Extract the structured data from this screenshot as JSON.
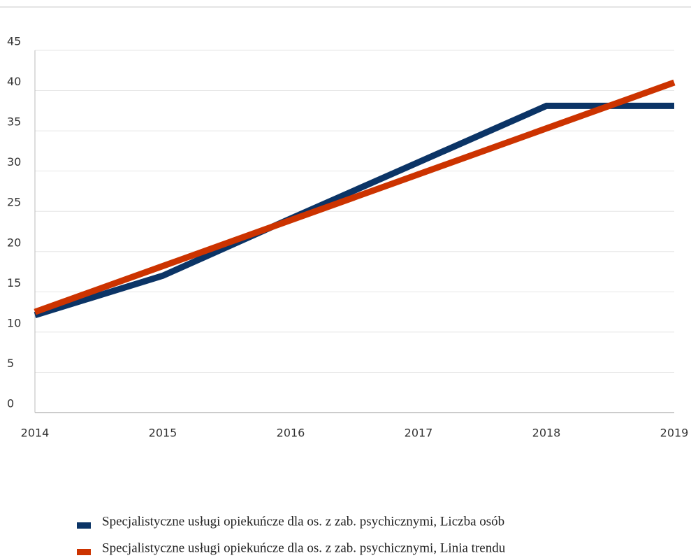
{
  "chart_data": {
    "type": "line",
    "x": [
      2014,
      2015,
      2016,
      2017,
      2018,
      2019
    ],
    "xlim": [
      2014,
      2019
    ],
    "xticks": [
      2014,
      2015,
      2016,
      2017,
      2018,
      2019
    ],
    "ylim": [
      0,
      45
    ],
    "yticks": [
      0,
      5,
      10,
      15,
      20,
      25,
      30,
      35,
      40,
      45
    ],
    "grid": true,
    "legend": "bottom",
    "series": [
      {
        "name": "Specjalistyczne usługi opiekuńcze dla os. z zab. psychicznymi, Liczba osób",
        "color": "#0b3466",
        "values": [
          12.1,
          17,
          24.1,
          31.1,
          38.1,
          38.1
        ]
      },
      {
        "name": "Specjalistyczne usługi opiekuńcze dla os. z zab. psychicznymi, Linia trendu",
        "color": "#cc3300",
        "values": [
          12.5,
          18.2,
          23.9,
          29.6,
          35.3,
          41
        ]
      }
    ]
  }
}
